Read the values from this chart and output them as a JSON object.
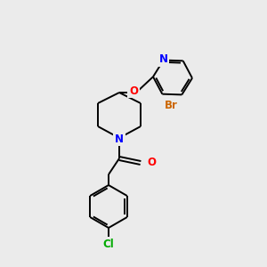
{
  "background_color": "#ebebeb",
  "bond_color": "#000000",
  "atom_colors": {
    "N": "#0000ff",
    "O": "#ff0000",
    "Br": "#cc6600",
    "Cl": "#00aa00"
  },
  "figsize": [
    3.0,
    3.0
  ],
  "dpi": 100
}
